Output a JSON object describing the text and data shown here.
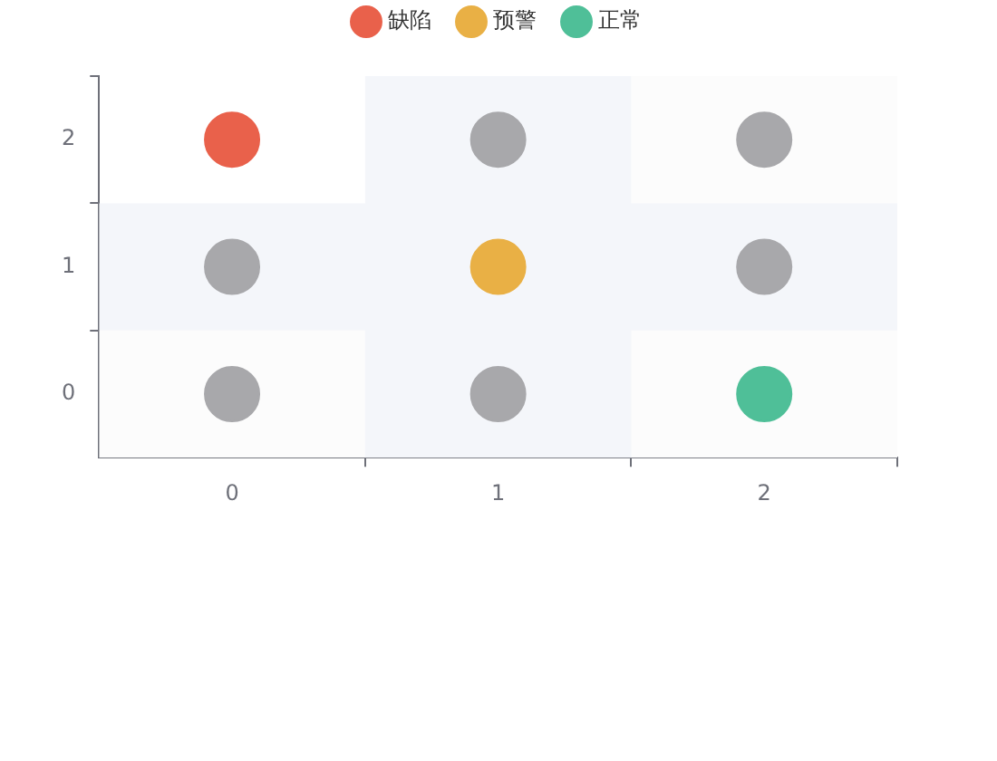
{
  "chart_data": {
    "type": "scatter",
    "legend": "top",
    "marker": "circle",
    "xlim": [
      -0.5,
      2.5
    ],
    "xticks": [
      0,
      {
        "value": 0.5,
        "label": null
      },
      1,
      {
        "value": 1.5,
        "label": null
      },
      2,
      {
        "value": 2.5,
        "label": null
      }
    ],
    "ylim": [
      -0.5,
      2.5
    ],
    "yticks": [
      0,
      {
        "value": 0.5,
        "label": null
      },
      1,
      {
        "value": 1.5,
        "label": null
      },
      2,
      {
        "value": 2.5,
        "label": null
      }
    ],
    "bands": [
      {
        "axis": "y",
        "from": -0.5,
        "to": 0.5,
        "color": "#fcfcfc"
      },
      {
        "axis": "x",
        "from": 1.5,
        "to": 2.5,
        "color": "#fcfcfc"
      },
      {
        "axis": "x",
        "from": 0.5,
        "to": 1.5,
        "color": "#f4f6fa"
      },
      {
        "axis": "y",
        "from": 0.5,
        "to": 1.5,
        "color": "#f4f6fa"
      }
    ],
    "series": [
      {
        "name": "缺陷",
        "color": "#e9614b",
        "x": [
          0
        ],
        "values": [
          2
        ]
      },
      {
        "name": "预警",
        "color": "#e9b045",
        "x": [
          1
        ],
        "values": [
          1
        ]
      },
      {
        "name": "正常",
        "color": "#4fbf98",
        "x": [
          2
        ],
        "values": [
          0
        ]
      },
      {
        "color": "#a8a8ab",
        "x": [
          1,
          2,
          0,
          2,
          0,
          1
        ],
        "values": [
          2,
          2,
          1,
          1,
          0,
          0
        ]
      }
    ]
  }
}
